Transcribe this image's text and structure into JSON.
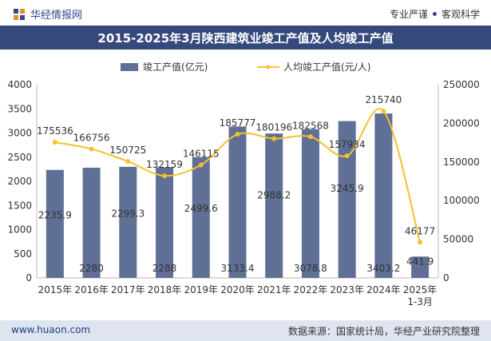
{
  "header": {
    "brand": "华经情报网",
    "tag_left": "专业严谨",
    "tag_right": "客观科学"
  },
  "title": "2015-2025年3月陕西建筑业竣工产值及人均竣工产值",
  "footer": {
    "site": "www.huaon.com",
    "source": "数据来源：国家统计局，华经产业研究院整理"
  },
  "colors": {
    "bar": "#5f6f96",
    "line": "#f5c12e",
    "title_bg": "#35497d",
    "footer_bg": "#dfe5f0"
  },
  "chart_data": {
    "type": "bar",
    "title": "2015-2025年3月陕西建筑业竣工产值及人均竣工产值",
    "categories": [
      "2015年",
      "2016年",
      "2017年",
      "2018年",
      "2019年",
      "2020年",
      "2021年",
      "2022年",
      "2023年",
      "2024年",
      "2025年\n1-3月"
    ],
    "series": [
      {
        "name": "竣工产值(亿元)",
        "type": "bar",
        "axis": "left",
        "values": [
          2235.9,
          2280,
          2299.3,
          2288,
          2499.6,
          3133.4,
          2988.2,
          3078.8,
          3245.9,
          3403.2,
          441.9
        ],
        "labels": [
          "2235.9",
          "2280",
          "2299.3",
          "2288",
          "2499.6",
          "3133.4",
          "2988.2",
          "3078.8",
          "3245.9",
          "3403.2",
          "441.9"
        ]
      },
      {
        "name": "人均竣工产值(元/人)",
        "type": "line",
        "axis": "right",
        "values": [
          175536,
          166756,
          150725,
          132159,
          146115,
          185777,
          180196,
          182568,
          157934,
          215740,
          46177
        ],
        "labels": [
          "175536",
          "166756",
          "150725",
          "132159",
          "146115",
          "185777",
          "180196",
          "182568",
          "157934",
          "215740",
          "46177"
        ]
      }
    ],
    "y_left": {
      "min": 0,
      "max": 4000,
      "ticks": [
        0,
        500,
        1000,
        1500,
        2000,
        2500,
        3000,
        3500,
        4000
      ]
    },
    "y_right": {
      "min": 0,
      "max": 250000,
      "ticks": [
        0,
        50000,
        100000,
        150000,
        200000,
        250000
      ]
    },
    "legend": "top-center",
    "grid": false
  }
}
